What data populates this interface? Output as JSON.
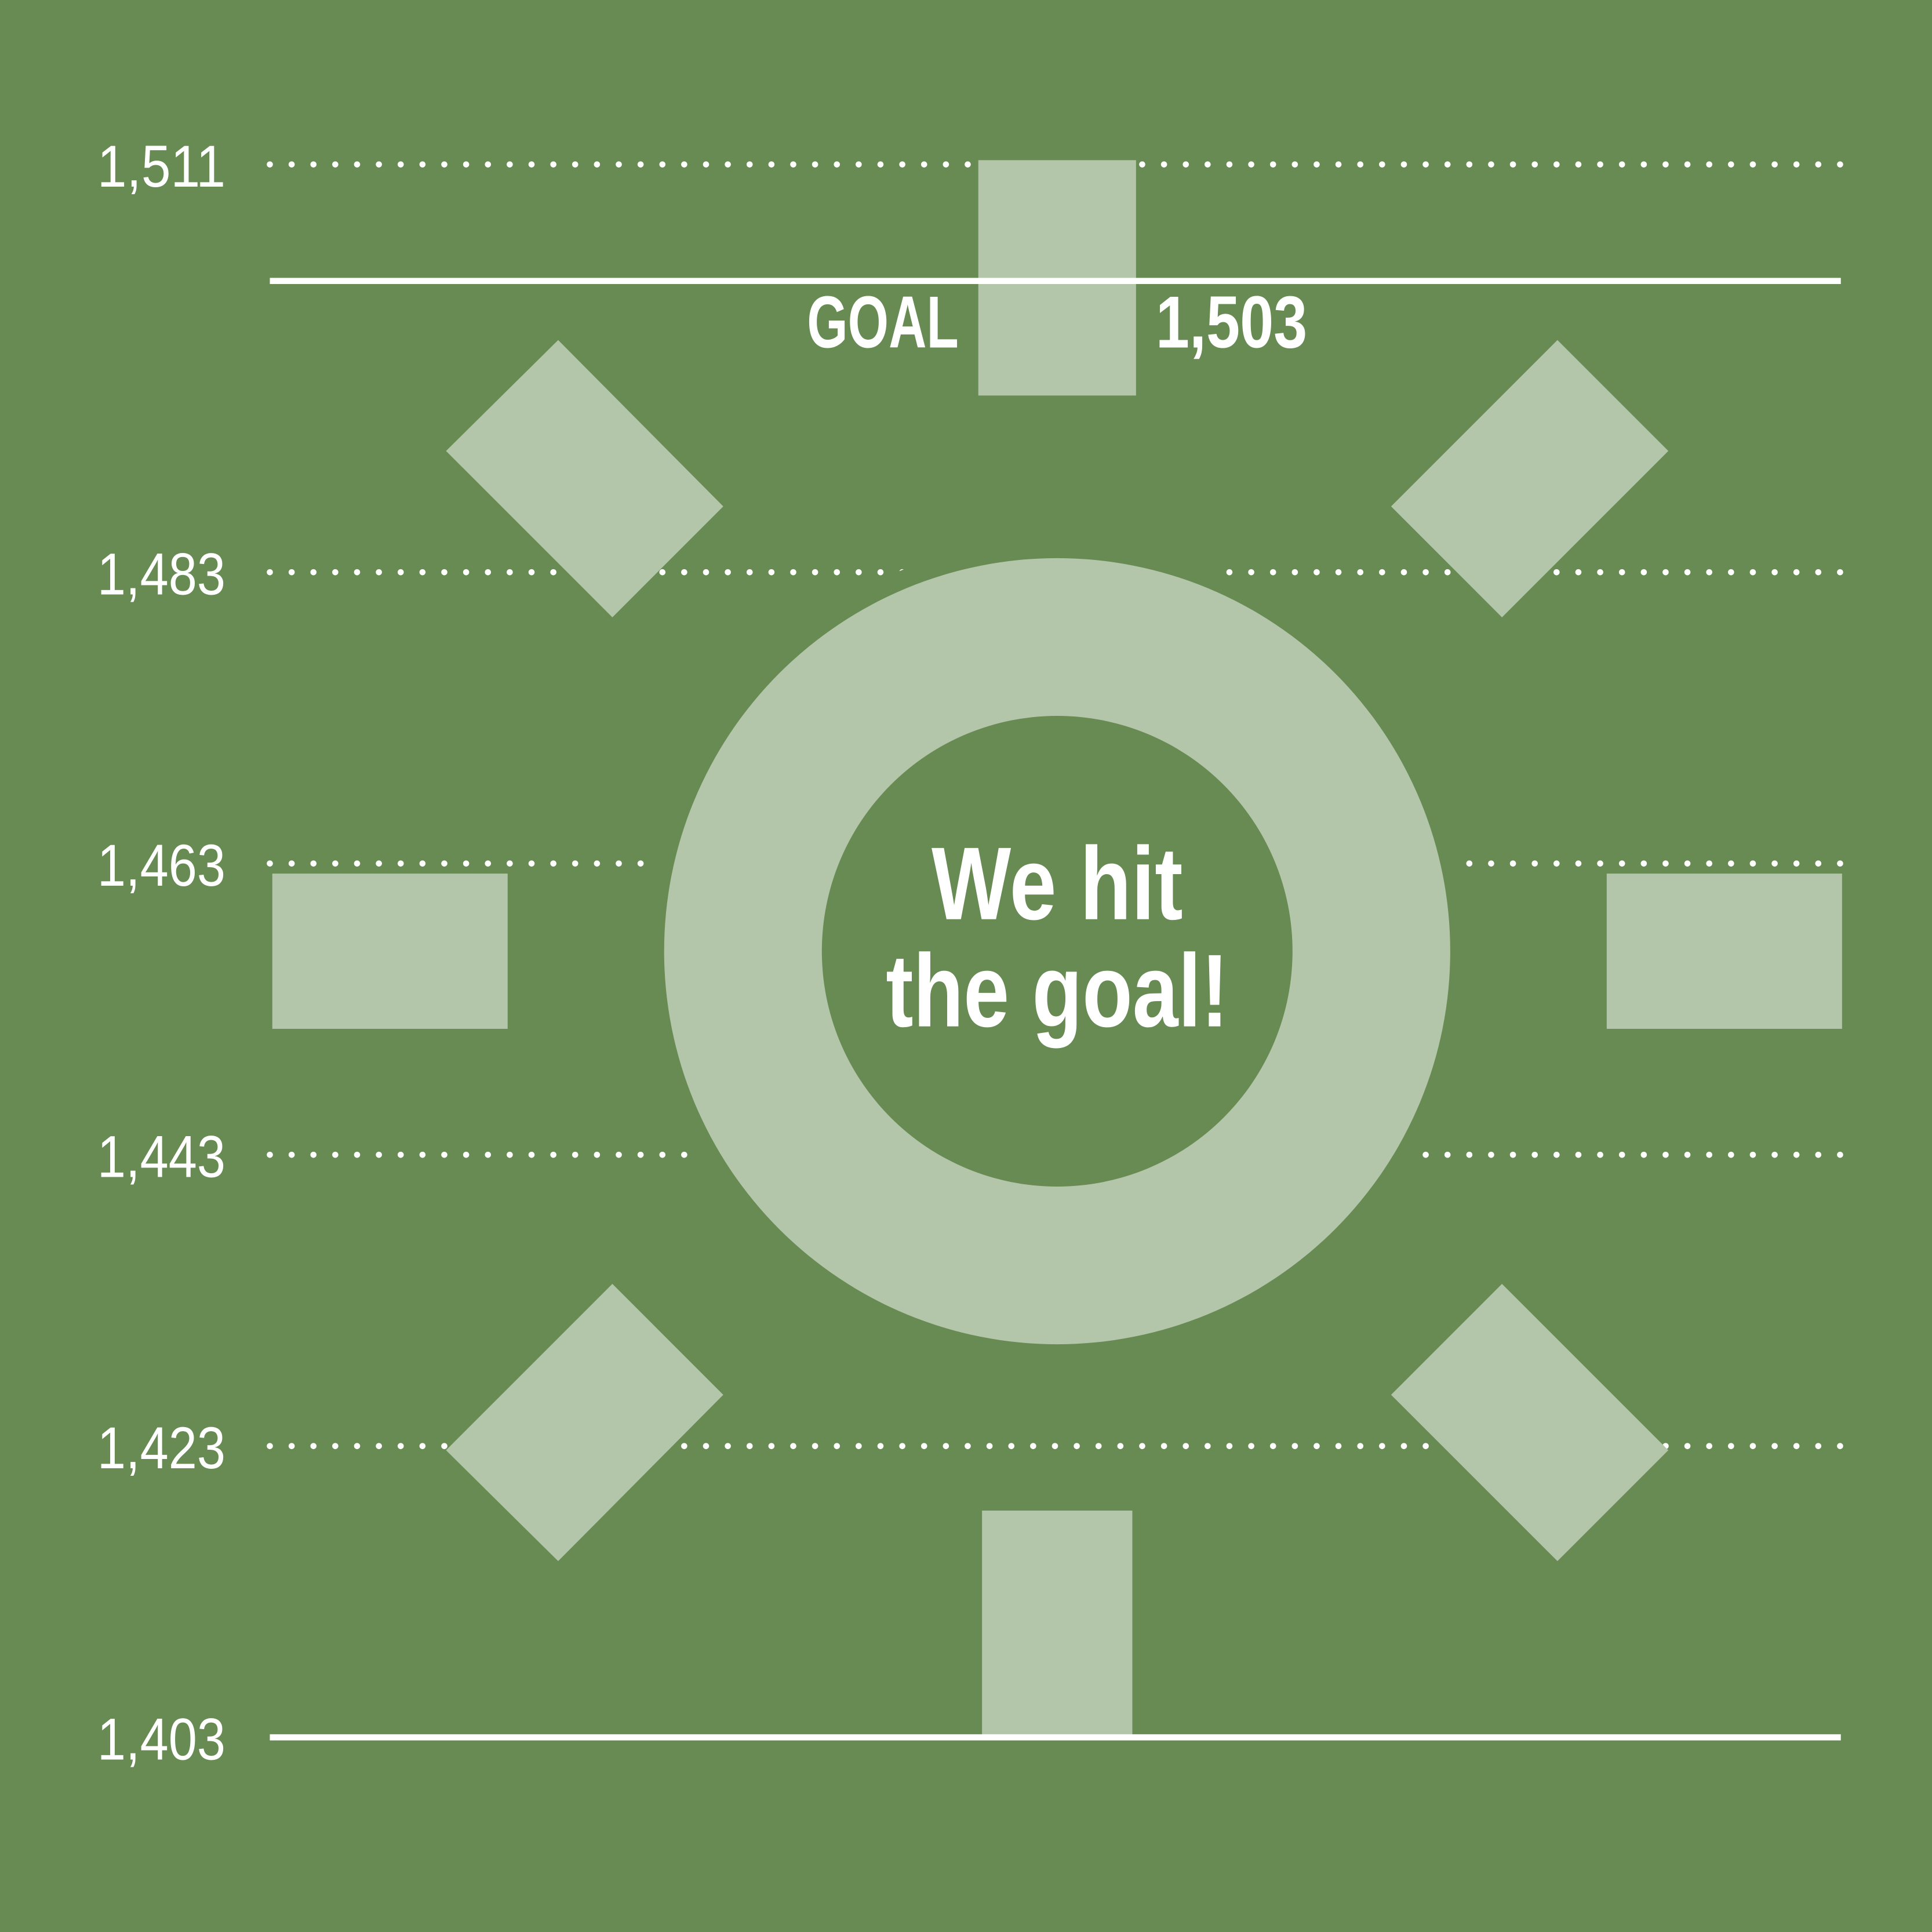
{
  "colors": {
    "background": "#678b53",
    "shape": "#b3c6aa",
    "line": "#ffffff"
  },
  "chart_data": {
    "type": "infographic",
    "y_ticks": [
      "1,511",
      "1,483",
      "1,463",
      "1,443",
      "1,423",
      "1,403"
    ],
    "y_tick_values": [
      1511,
      1483,
      1463,
      1443,
      1423,
      1403
    ],
    "ylim": [
      1403,
      1511
    ],
    "grid": "dotted",
    "goal": {
      "label": "GOAL",
      "value": 1503,
      "value_label": "1,503"
    },
    "message_line1": "We hit",
    "message_line2": "the goal!",
    "icon": "sun-icon"
  }
}
